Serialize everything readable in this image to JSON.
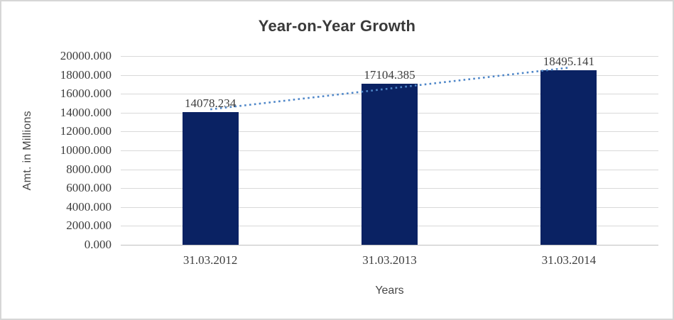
{
  "chart_data": {
    "type": "bar",
    "title": "Year-on-Year Growth",
    "xlabel": "Years",
    "ylabel": "Amt. in Millions",
    "categories": [
      "31.03.2012",
      "31.03.2013",
      "31.03.2014"
    ],
    "values": [
      14078.234,
      17104.385,
      18495.141
    ],
    "data_labels": [
      "14078.234",
      "17104.385",
      "18495.141"
    ],
    "ylim": [
      0,
      20000
    ],
    "ytick_step": 2000,
    "ytick_labels": [
      "20000.000",
      "18000.000",
      "16000.000",
      "14000.000",
      "12000.000",
      "10000.000",
      "8000.000",
      "6000.000",
      "4000.000",
      "2000.000",
      "0.000"
    ],
    "grid": "horizontal",
    "legend": "none",
    "bar_color": "#0a2263",
    "trendline": {
      "type": "linear",
      "style": "dotted",
      "color": "#4e86c8",
      "start_value": 14351,
      "end_value": 18768
    }
  }
}
